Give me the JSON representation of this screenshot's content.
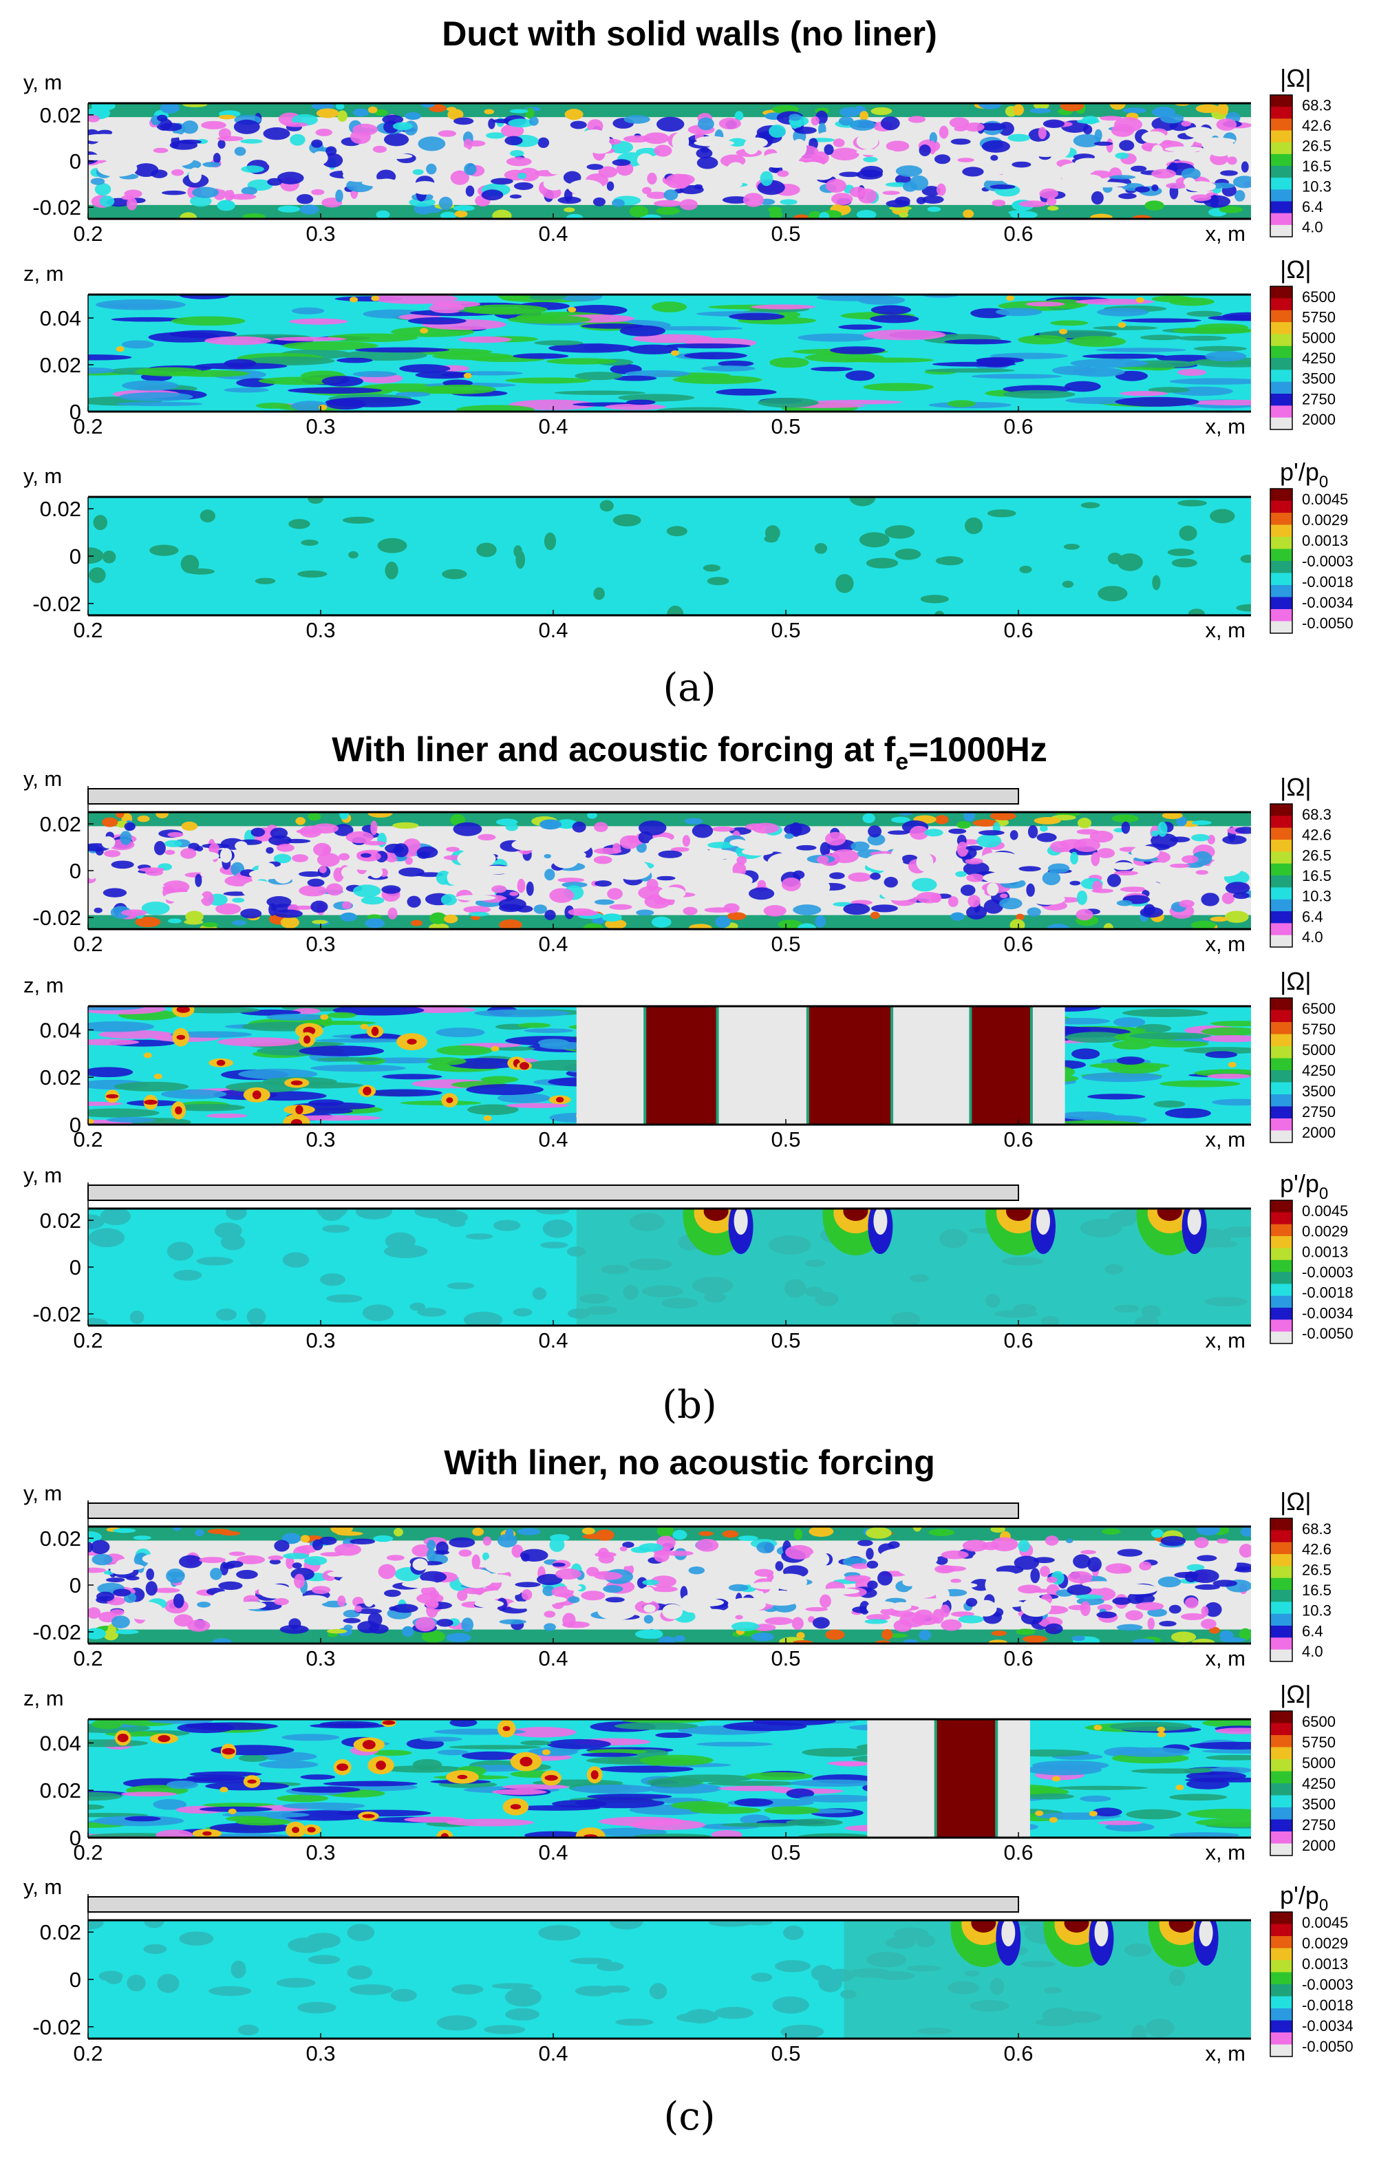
{
  "chart_data": {
    "type": "heatmap",
    "sections": [
      {
        "key": "a",
        "title": "Duct with solid walls (no liner)",
        "label": "(a)",
        "liner": false,
        "panels": [
          {
            "quantity": "vorticity",
            "xlabel": "x, m",
            "ylabel": "y, m",
            "ylim": [
              -0.025,
              0.025
            ],
            "yticks": [
              "0.02",
              "0",
              "-0.02"
            ],
            "liner_bar": false,
            "pattern": "noise",
            "colorbar": {
              "title": "|Ω|",
              "ticks": [
                "68.3",
                "42.6",
                "26.5",
                "16.5",
                "10.3",
                "6.4",
                "4.0"
              ]
            }
          },
          {
            "quantity": "vorticity",
            "xlabel": "x, m",
            "ylabel": "z, m",
            "ylim": [
              0,
              0.05
            ],
            "yticks": [
              "0.04",
              "0.02",
              "0"
            ],
            "liner_bar": false,
            "pattern": "streaks",
            "colorbar": {
              "title": "|Ω|",
              "ticks": [
                "6500",
                "5750",
                "5000",
                "4250",
                "3500",
                "2750",
                "2000"
              ]
            }
          },
          {
            "quantity": "pressure",
            "xlabel": "x, m",
            "ylabel": "y, m",
            "ylim": [
              -0.025,
              0.025
            ],
            "yticks": [
              "0.02",
              "0",
              "-0.02"
            ],
            "liner_bar": false,
            "pattern": "calm",
            "colorbar": {
              "title": "p'/p",
              "title_sub": "0",
              "ticks": [
                "0.0045",
                "0.0029",
                "0.0013",
                "-0.0003",
                "-0.0018",
                "-0.0034",
                "-0.0050"
              ]
            }
          }
        ]
      },
      {
        "key": "b",
        "title": "With liner and acoustic forcing at f",
        "title_sub": "e",
        "title_tail": "=1000Hz",
        "label": "(b)",
        "liner": true,
        "panels": [
          {
            "quantity": "vorticity",
            "xlabel": "x, m",
            "ylabel": "y, m",
            "ylim": [
              -0.025,
              0.025
            ],
            "yticks": [
              "0.02",
              "0",
              "-0.02"
            ],
            "liner_bar": true,
            "pattern": "noise",
            "colorbar": {
              "title": "|Ω|",
              "ticks": [
                "68.3",
                "42.6",
                "26.5",
                "16.5",
                "10.3",
                "6.4",
                "4.0"
              ]
            }
          },
          {
            "quantity": "vorticity",
            "xlabel": "x, m",
            "ylabel": "z, m",
            "ylim": [
              0,
              0.05
            ],
            "yticks": [
              "0.04",
              "0.02",
              "0"
            ],
            "liner_bar": false,
            "pattern": "bands",
            "bands": [
              [
                0.44,
                0.47
              ],
              [
                0.51,
                0.545
              ],
              [
                0.58,
                0.605
              ]
            ],
            "colorbar": {
              "title": "|Ω|",
              "ticks": [
                "6500",
                "5750",
                "5000",
                "4250",
                "3500",
                "2750",
                "2000"
              ]
            }
          },
          {
            "quantity": "pressure",
            "xlabel": "x, m",
            "ylabel": "y, m",
            "ylim": [
              -0.025,
              0.025
            ],
            "yticks": [
              "0.02",
              "0",
              "-0.02"
            ],
            "liner_bar": true,
            "pattern": "waves",
            "wave_x": [
              0.47,
              0.53,
              0.6,
              0.665
            ],
            "colorbar": {
              "title": "p'/p",
              "title_sub": "0",
              "ticks": [
                "0.0045",
                "0.0029",
                "0.0013",
                "-0.0003",
                "-0.0018",
                "-0.0034",
                "-0.0050"
              ]
            }
          }
        ]
      },
      {
        "key": "c",
        "title": "With liner, no acoustic forcing",
        "label": "(c)",
        "liner": true,
        "panels": [
          {
            "quantity": "vorticity",
            "xlabel": "x, m",
            "ylabel": "y, m",
            "ylim": [
              -0.025,
              0.025
            ],
            "yticks": [
              "0.02",
              "0",
              "-0.02"
            ],
            "liner_bar": true,
            "pattern": "noise",
            "colorbar": {
              "title": "|Ω|",
              "ticks": [
                "68.3",
                "42.6",
                "26.5",
                "16.5",
                "10.3",
                "6.4",
                "4.0"
              ]
            }
          },
          {
            "quantity": "vorticity",
            "xlabel": "x, m",
            "ylabel": "z, m",
            "ylim": [
              0,
              0.05
            ],
            "yticks": [
              "0.04",
              "0.02",
              "0"
            ],
            "liner_bar": false,
            "pattern": "bands",
            "bands": [
              [
                0.565,
                0.59
              ]
            ],
            "colorbar": {
              "title": "|Ω|",
              "ticks": [
                "6500",
                "5750",
                "5000",
                "4250",
                "3500",
                "2750",
                "2000"
              ]
            }
          },
          {
            "quantity": "pressure",
            "xlabel": "x, m",
            "ylabel": "y, m",
            "ylim": [
              -0.025,
              0.025
            ],
            "yticks": [
              "0.02",
              "0",
              "-0.02"
            ],
            "liner_bar": true,
            "pattern": "waves",
            "wave_x": [
              0.585,
              0.625,
              0.67
            ],
            "colorbar": {
              "title": "p'/p",
              "title_sub": "0",
              "ticks": [
                "0.0045",
                "0.0029",
                "0.0013",
                "-0.0003",
                "-0.0018",
                "-0.0034",
                "-0.0050"
              ]
            }
          }
        ]
      }
    ],
    "xlim": [
      0.2,
      0.7
    ],
    "xticks": [
      "0.2",
      "0.3",
      "0.4",
      "0.5",
      "0.6"
    ],
    "liner_extent": [
      0.2,
      0.6
    ],
    "colormap": [
      "#e8e8e8",
      "#f06ee6",
      "#1a1acc",
      "#2a9be0",
      "#22e0e0",
      "#1fa37a",
      "#2ec62e",
      "#b8e02e",
      "#f0c020",
      "#e86010",
      "#c00010",
      "#7a0000"
    ]
  }
}
